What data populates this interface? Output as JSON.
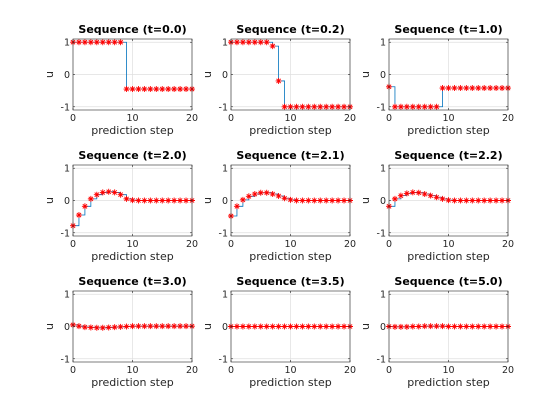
{
  "chart_data": [
    {
      "type": "line",
      "title": "Sequence (t=0.0)",
      "xlabel": "prediction step",
      "ylabel": "u",
      "xlim": [
        0,
        20
      ],
      "ylim": [
        -1.1,
        1.1
      ],
      "xticks": [
        0,
        10,
        20
      ],
      "yticks": [
        -1,
        0,
        1
      ],
      "grid": true,
      "color": "#0072BD",
      "marker_color": "#FF0000",
      "values": [
        1,
        1,
        1,
        1,
        1,
        1,
        1,
        1,
        1,
        -0.45,
        -0.45,
        -0.45,
        -0.45,
        -0.45,
        -0.45,
        -0.45,
        -0.45,
        -0.45,
        -0.45,
        -0.45,
        -0.45
      ]
    },
    {
      "type": "line",
      "title": "Sequence (t=0.2)",
      "xlabel": "prediction step",
      "ylabel": "u",
      "xlim": [
        0,
        20
      ],
      "ylim": [
        -1.1,
        1.1
      ],
      "xticks": [
        0,
        10,
        20
      ],
      "yticks": [
        -1,
        0,
        1
      ],
      "grid": true,
      "color": "#0072BD",
      "marker_color": "#FF0000",
      "values": [
        1,
        1,
        1,
        1,
        1,
        1,
        1,
        0.88,
        -0.2,
        -1,
        -1,
        -1,
        -1,
        -1,
        -1,
        -1,
        -1,
        -1,
        -1,
        -1,
        -1
      ]
    },
    {
      "type": "line",
      "title": "Sequence (t=1.0)",
      "xlabel": "prediction step",
      "ylabel": "u",
      "xlim": [
        0,
        20
      ],
      "ylim": [
        -1.1,
        1.1
      ],
      "xticks": [
        0,
        10,
        20
      ],
      "yticks": [
        -1,
        0,
        1
      ],
      "grid": true,
      "color": "#0072BD",
      "marker_color": "#FF0000",
      "values": [
        -0.38,
        -1,
        -1,
        -1,
        -1,
        -1,
        -1,
        -1,
        -1,
        -0.42,
        -0.42,
        -0.42,
        -0.42,
        -0.42,
        -0.42,
        -0.42,
        -0.42,
        -0.42,
        -0.42,
        -0.42,
        -0.42
      ]
    },
    {
      "type": "line",
      "title": "Sequence (t=2.0)",
      "xlabel": "prediction step",
      "ylabel": "u",
      "xlim": [
        0,
        20
      ],
      "ylim": [
        -1.1,
        1.1
      ],
      "xticks": [
        0,
        10,
        20
      ],
      "yticks": [
        -1,
        0,
        1
      ],
      "grid": true,
      "color": "#0072BD",
      "marker_color": "#FF0000",
      "values": [
        -0.78,
        -0.45,
        -0.18,
        0.05,
        0.18,
        0.25,
        0.27,
        0.25,
        0.18,
        0.05,
        0.01,
        0,
        0,
        0,
        0,
        0,
        0,
        0,
        0,
        0,
        0
      ]
    },
    {
      "type": "line",
      "title": "Sequence (t=2.1)",
      "xlabel": "prediction step",
      "ylabel": "u",
      "xlim": [
        0,
        20
      ],
      "ylim": [
        -1.1,
        1.1
      ],
      "xticks": [
        0,
        10,
        20
      ],
      "yticks": [
        -1,
        0,
        1
      ],
      "grid": true,
      "color": "#0072BD",
      "marker_color": "#FF0000",
      "values": [
        -0.48,
        -0.18,
        0.02,
        0.13,
        0.2,
        0.24,
        0.24,
        0.2,
        0.14,
        0.07,
        0.02,
        0,
        0,
        0,
        0,
        0,
        0,
        0,
        0,
        0,
        0
      ]
    },
    {
      "type": "line",
      "title": "Sequence (t=2.2)",
      "xlabel": "prediction step",
      "ylabel": "u",
      "xlim": [
        0,
        20
      ],
      "ylim": [
        -1.1,
        1.1
      ],
      "xticks": [
        0,
        10,
        20
      ],
      "yticks": [
        -1,
        0,
        1
      ],
      "grid": true,
      "color": "#0072BD",
      "marker_color": "#FF0000",
      "values": [
        -0.18,
        0.05,
        0.15,
        0.22,
        0.25,
        0.24,
        0.2,
        0.15,
        0.1,
        0.05,
        0.01,
        0,
        0,
        0,
        0,
        0,
        0,
        0,
        0,
        0,
        0
      ]
    },
    {
      "type": "line",
      "title": "Sequence (t=3.0)",
      "xlabel": "prediction step",
      "ylabel": "u",
      "xlim": [
        0,
        20
      ],
      "ylim": [
        -1.1,
        1.1
      ],
      "xticks": [
        0,
        10,
        20
      ],
      "yticks": [
        -1,
        0,
        1
      ],
      "grid": true,
      "color": "#0072BD",
      "marker_color": "#FF0000",
      "values": [
        0.05,
        0.01,
        -0.02,
        -0.03,
        -0.04,
        -0.04,
        -0.03,
        -0.02,
        -0.01,
        0,
        0.01,
        0.01,
        0.01,
        0.01,
        0.01,
        0.01,
        0.01,
        0.01,
        0.01,
        0.01,
        0.01
      ]
    },
    {
      "type": "line",
      "title": "Sequence (t=3.5)",
      "xlabel": "prediction step",
      "ylabel": "u",
      "xlim": [
        0,
        20
      ],
      "ylim": [
        -1.1,
        1.1
      ],
      "xticks": [
        0,
        10,
        20
      ],
      "yticks": [
        -1,
        0,
        1
      ],
      "grid": true,
      "color": "#0072BD",
      "marker_color": "#FF0000",
      "values": [
        0,
        0,
        0,
        0,
        0,
        0,
        0,
        0,
        0,
        0,
        0,
        0,
        0,
        0,
        0,
        0,
        0,
        0,
        0,
        0,
        0
      ]
    },
    {
      "type": "line",
      "title": "Sequence (t=5.0)",
      "xlabel": "prediction step",
      "ylabel": "u",
      "xlim": [
        0,
        20
      ],
      "ylim": [
        -1.1,
        1.1
      ],
      "xticks": [
        0,
        10,
        20
      ],
      "yticks": [
        -1,
        0,
        1
      ],
      "grid": true,
      "color": "#0072BD",
      "marker_color": "#FF0000",
      "values": [
        0,
        -0.01,
        -0.01,
        -0.01,
        0,
        0,
        0.01,
        0.01,
        0.01,
        0.01,
        0,
        0,
        0,
        0,
        0,
        0,
        0,
        0,
        0,
        0,
        0
      ]
    }
  ]
}
